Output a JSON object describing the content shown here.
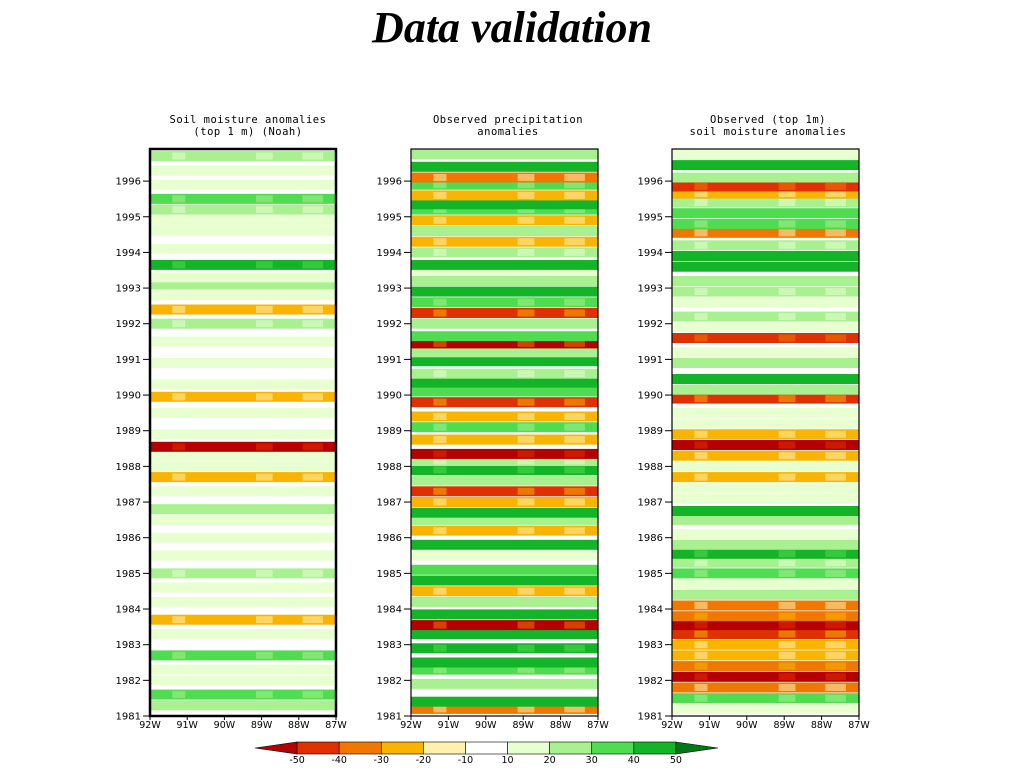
{
  "slide": {
    "title": "Data validation"
  },
  "chart_data": [
    {
      "type": "heatmap",
      "title_lines": [
        "Soil moisture anomalies",
        "(top 1 m) (Noah)"
      ],
      "xlabel": "",
      "ylabel": "",
      "x_ticks": [
        "92W",
        "91W",
        "90W",
        "89W",
        "88W",
        "87W"
      ],
      "y_ticks": [
        "1981",
        "1982",
        "1983",
        "1984",
        "1985",
        "1986",
        "1987",
        "1988",
        "1989",
        "1990",
        "1991",
        "1992",
        "1993",
        "1994",
        "1995",
        "1996"
      ],
      "ylim": [
        1981,
        1996.9
      ],
      "xlim": [
        "92W",
        "87W"
      ],
      "bands": [
        {
          "y": 1981.3,
          "v": 25
        },
        {
          "y": 1981.6,
          "v": 32
        },
        {
          "y": 1982.0,
          "v": 18
        },
        {
          "y": 1982.3,
          "v": 15
        },
        {
          "y": 1982.7,
          "v": 30
        },
        {
          "y": 1983.3,
          "v": 12
        },
        {
          "y": 1983.7,
          "v": -18
        },
        {
          "y": 1984.2,
          "v": 12
        },
        {
          "y": 1984.6,
          "v": 15
        },
        {
          "y": 1985.0,
          "v": 22
        },
        {
          "y": 1985.5,
          "v": 12
        },
        {
          "y": 1986.0,
          "v": 15
        },
        {
          "y": 1986.5,
          "v": 18
        },
        {
          "y": 1986.8,
          "v": 25
        },
        {
          "y": 1987.3,
          "v": 12
        },
        {
          "y": 1987.7,
          "v": -12
        },
        {
          "y": 1988.0,
          "v": 15
        },
        {
          "y": 1988.3,
          "v": 12
        },
        {
          "y": 1988.55,
          "v": -48
        },
        {
          "y": 1988.9,
          "v": 12
        },
        {
          "y": 1989.5,
          "v": 12
        },
        {
          "y": 1989.95,
          "v": -15
        },
        {
          "y": 1990.3,
          "v": 12
        },
        {
          "y": 1990.9,
          "v": 15
        },
        {
          "y": 1991.5,
          "v": 12
        },
        {
          "y": 1992.0,
          "v": 20
        },
        {
          "y": 1992.4,
          "v": -12
        },
        {
          "y": 1992.8,
          "v": 15
        },
        {
          "y": 1993.1,
          "v": 25
        },
        {
          "y": 1993.3,
          "v": 18
        },
        {
          "y": 1993.65,
          "v": 42
        },
        {
          "y": 1994.1,
          "v": 12
        },
        {
          "y": 1994.6,
          "v": 15
        },
        {
          "y": 1994.9,
          "v": 18
        },
        {
          "y": 1995.2,
          "v": 22
        },
        {
          "y": 1995.5,
          "v": 30
        },
        {
          "y": 1995.9,
          "v": 15
        },
        {
          "y": 1996.3,
          "v": 12
        },
        {
          "y": 1996.7,
          "v": 20
        }
      ]
    },
    {
      "type": "heatmap",
      "title_lines": [
        "Observed precipitation",
        "anomalies"
      ],
      "xlabel": "",
      "ylabel": "",
      "x_ticks": [
        "92W",
        "91W",
        "90W",
        "89W",
        "88W",
        "87W"
      ],
      "y_ticks": [
        "1981",
        "1982",
        "1983",
        "1984",
        "1985",
        "1986",
        "1987",
        "1988",
        "1989",
        "1990",
        "1991",
        "1992",
        "1993",
        "1994",
        "1995",
        "1996"
      ],
      "ylim": [
        1981,
        1996.9
      ],
      "xlim": [
        "92W",
        "87W"
      ],
      "bands": [
        {
          "y": 1981.2,
          "v": -25
        },
        {
          "y": 1981.4,
          "v": 45
        },
        {
          "y": 1981.9,
          "v": 25
        },
        {
          "y": 1982.3,
          "v": 30
        },
        {
          "y": 1982.5,
          "v": 45
        },
        {
          "y": 1982.9,
          "v": 40
        },
        {
          "y": 1983.3,
          "v": 45
        },
        {
          "y": 1983.55,
          "v": -45
        },
        {
          "y": 1983.85,
          "v": 45
        },
        {
          "y": 1984.2,
          "v": 25
        },
        {
          "y": 1984.5,
          "v": -20
        },
        {
          "y": 1984.8,
          "v": 45
        },
        {
          "y": 1985.1,
          "v": 35
        },
        {
          "y": 1985.5,
          "v": 15
        },
        {
          "y": 1985.8,
          "v": 48
        },
        {
          "y": 1986.2,
          "v": -20
        },
        {
          "y": 1986.5,
          "v": 25
        },
        {
          "y": 1986.7,
          "v": 45
        },
        {
          "y": 1987.0,
          "v": -15
        },
        {
          "y": 1987.3,
          "v": -35
        },
        {
          "y": 1987.6,
          "v": 25
        },
        {
          "y": 1987.9,
          "v": 40
        },
        {
          "y": 1988.15,
          "v": 20
        },
        {
          "y": 1988.35,
          "v": -48
        },
        {
          "y": 1988.75,
          "v": -20
        },
        {
          "y": 1989.1,
          "v": 30
        },
        {
          "y": 1989.4,
          "v": -15
        },
        {
          "y": 1989.8,
          "v": -35
        },
        {
          "y": 1990.1,
          "v": 35
        },
        {
          "y": 1990.35,
          "v": 48
        },
        {
          "y": 1990.6,
          "v": 20
        },
        {
          "y": 1990.95,
          "v": 45
        },
        {
          "y": 1991.2,
          "v": 25
        },
        {
          "y": 1991.45,
          "v": -45
        },
        {
          "y": 1991.65,
          "v": 35
        },
        {
          "y": 1992.0,
          "v": 25
        },
        {
          "y": 1992.3,
          "v": -35
        },
        {
          "y": 1992.6,
          "v": 30
        },
        {
          "y": 1992.9,
          "v": 45
        },
        {
          "y": 1993.2,
          "v": 25
        },
        {
          "y": 1993.5,
          "v": 15
        },
        {
          "y": 1993.65,
          "v": 48
        },
        {
          "y": 1994.0,
          "v": 20
        },
        {
          "y": 1994.3,
          "v": -15
        },
        {
          "y": 1994.6,
          "v": 25
        },
        {
          "y": 1994.9,
          "v": -15
        },
        {
          "y": 1995.2,
          "v": 30
        },
        {
          "y": 1995.35,
          "v": 48
        },
        {
          "y": 1995.6,
          "v": -20
        },
        {
          "y": 1995.9,
          "v": 30
        },
        {
          "y": 1996.1,
          "v": -25
        },
        {
          "y": 1996.4,
          "v": 48
        },
        {
          "y": 1996.75,
          "v": 25
        }
      ]
    },
    {
      "type": "heatmap",
      "title_lines": [
        "Observed (top 1m)",
        "soil moisture anomalies"
      ],
      "xlabel": "",
      "ylabel": "",
      "x_ticks": [
        "92W",
        "91W",
        "90W",
        "89W",
        "88W",
        "87W"
      ],
      "y_ticks": [
        "1981",
        "1982",
        "1983",
        "1984",
        "1985",
        "1986",
        "1987",
        "1988",
        "1989",
        "1990",
        "1991",
        "1992",
        "1993",
        "1994",
        "1995",
        "1996"
      ],
      "ylim": [
        1981,
        1996.9
      ],
      "xlim": [
        "92W",
        "87W"
      ],
      "bands": [
        {
          "y": 1981.2,
          "v": 15
        },
        {
          "y": 1981.5,
          "v": 30
        },
        {
          "y": 1981.8,
          "v": -25
        },
        {
          "y": 1982.1,
          "v": -48
        },
        {
          "y": 1982.4,
          "v": -30
        },
        {
          "y": 1982.7,
          "v": -20
        },
        {
          "y": 1983.0,
          "v": -15
        },
        {
          "y": 1983.3,
          "v": -35
        },
        {
          "y": 1983.55,
          "v": -48
        },
        {
          "y": 1983.8,
          "v": -30
        },
        {
          "y": 1984.1,
          "v": -25
        },
        {
          "y": 1984.4,
          "v": 25
        },
        {
          "y": 1984.7,
          "v": 15
        },
        {
          "y": 1985.0,
          "v": 30
        },
        {
          "y": 1985.3,
          "v": 20
        },
        {
          "y": 1985.55,
          "v": 40
        },
        {
          "y": 1985.8,
          "v": 25
        },
        {
          "y": 1986.1,
          "v": 15
        },
        {
          "y": 1986.5,
          "v": 25
        },
        {
          "y": 1986.75,
          "v": 45
        },
        {
          "y": 1987.1,
          "v": 18
        },
        {
          "y": 1987.4,
          "v": 15
        },
        {
          "y": 1987.7,
          "v": -20
        },
        {
          "y": 1988.0,
          "v": 15
        },
        {
          "y": 1988.3,
          "v": -15
        },
        {
          "y": 1988.6,
          "v": -48
        },
        {
          "y": 1988.9,
          "v": -20
        },
        {
          "y": 1989.2,
          "v": 12
        },
        {
          "y": 1989.5,
          "v": 15
        },
        {
          "y": 1989.9,
          "v": -35
        },
        {
          "y": 1990.15,
          "v": 25
        },
        {
          "y": 1990.45,
          "v": 45
        },
        {
          "y": 1990.9,
          "v": 25
        },
        {
          "y": 1991.2,
          "v": 15
        },
        {
          "y": 1991.6,
          "v": -40
        },
        {
          "y": 1991.9,
          "v": 12
        },
        {
          "y": 1992.2,
          "v": 20
        },
        {
          "y": 1992.6,
          "v": 15
        },
        {
          "y": 1992.9,
          "v": 20
        },
        {
          "y": 1993.2,
          "v": 25
        },
        {
          "y": 1993.6,
          "v": 48
        },
        {
          "y": 1993.9,
          "v": 45
        },
        {
          "y": 1994.2,
          "v": 20
        },
        {
          "y": 1994.55,
          "v": -25
        },
        {
          "y": 1994.8,
          "v": 30
        },
        {
          "y": 1995.1,
          "v": 35
        },
        {
          "y": 1995.4,
          "v": 20
        },
        {
          "y": 1995.65,
          "v": -20
        },
        {
          "y": 1995.85,
          "v": -38
        },
        {
          "y": 1996.1,
          "v": 25
        },
        {
          "y": 1996.45,
          "v": 48
        },
        {
          "y": 1996.75,
          "v": 15
        }
      ]
    }
  ],
  "colorbar": {
    "labels": [
      "-50",
      "-40",
      "-30",
      "-20",
      "-10",
      "10",
      "20",
      "30",
      "40",
      "50"
    ],
    "colors": [
      "#b40000",
      "#e03000",
      "#f07800",
      "#f8b400",
      "#fff2b0",
      "#ffffff",
      "#e8ffd0",
      "#a8f090",
      "#50dc50",
      "#14b428",
      "#007814"
    ]
  }
}
